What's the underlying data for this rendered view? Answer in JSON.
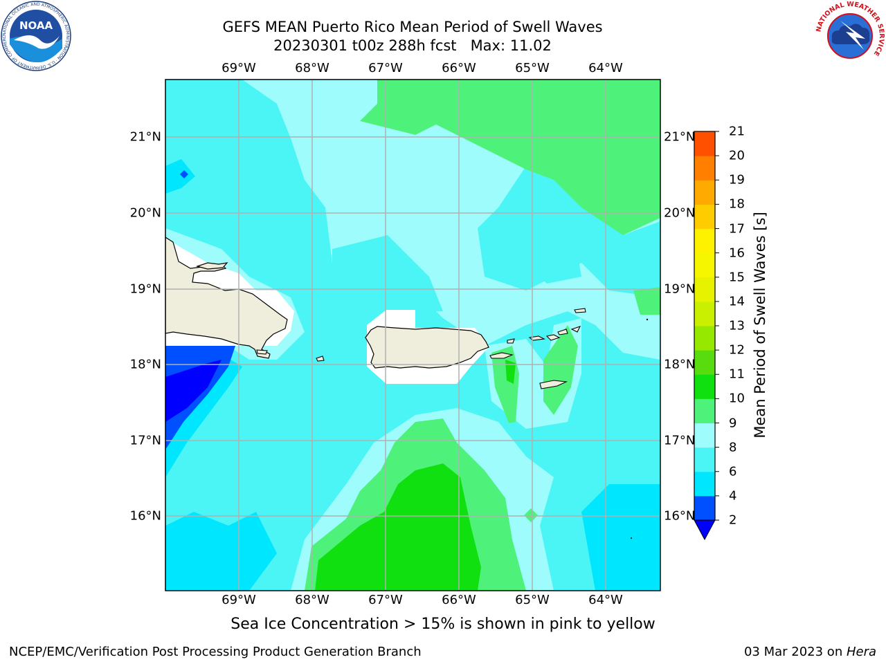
{
  "header": {
    "title_line1": "GEFS MEAN Puerto Rico Mean Period of Swell Waves",
    "title_line2": "20230301 t00z 288h fcst   Max: 11.02"
  },
  "map": {
    "lon_labels": [
      "69°W",
      "68°W",
      "67°W",
      "66°W",
      "65°W",
      "64°W"
    ],
    "lat_labels": [
      "21°N",
      "20°N",
      "19°N",
      "18°N",
      "17°N",
      "16°N"
    ],
    "extent": {
      "lon_min": -69.7,
      "lon_max": -63.27,
      "lat_min": 15.05,
      "lat_max": 21.75
    },
    "gridlines": true,
    "land_color": "#efeedc",
    "region_names": [
      "Hispaniola",
      "Puerto Rico",
      "Virgin Islands"
    ]
  },
  "colorbar": {
    "title": "Mean Period of Swell Waves [s]",
    "levels": [
      "2",
      "4",
      "6",
      "8",
      "9",
      "10",
      "11",
      "12",
      "13",
      "14",
      "15",
      "16",
      "17",
      "18",
      "19",
      "20",
      "21"
    ],
    "colors": [
      "#0050ff",
      "#00e6ff",
      "#4cf5f5",
      "#9efdfc",
      "#4ef27a",
      "#10e010",
      "#58dc10",
      "#96e800",
      "#c8f000",
      "#e6f200",
      "#f6f600",
      "#fff200",
      "#ffcc00",
      "#ffaa00",
      "#ff8000",
      "#ff5000",
      "#ff1a00"
    ],
    "under_color": "#0000ff",
    "extend": "min"
  },
  "caption": "Sea Ice Concentration > 15% is shown in pink to yellow",
  "footer": {
    "left": "NCEP/EMC/Verification Post Processing Product Generation Branch",
    "right_date": "03 Mar 2023 on ",
    "right_host": "Hera"
  },
  "logos": {
    "noaa_text": "NOAA",
    "noaa_ring": "NATIONAL OCEANIC AND ATMOSPHERIC ADMINISTRATION · U.S. DEPARTMENT OF COMMERCE",
    "nws_ring": "NATIONAL WEATHER SERVICE"
  }
}
